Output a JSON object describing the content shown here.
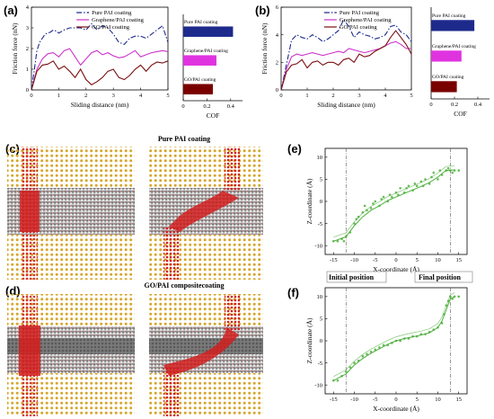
{
  "figure": {
    "sim_titles": [
      "Pure PAI coating",
      "GO/PAI compositecoating"
    ],
    "panel_labels": [
      "(a)",
      "(b)",
      "(c)",
      "(d)",
      "(e)",
      "(f)"
    ],
    "positions": [
      "Initial position",
      "Final position"
    ]
  },
  "chart_data": [
    {
      "id": "a",
      "type": "line",
      "title": "",
      "xlabel": "Sliding distance (nm)",
      "ylabel": "Friction force (nN)",
      "xlim": [
        0,
        5
      ],
      "ylim": [
        0,
        4
      ],
      "xticks": [
        "0",
        "1",
        "2",
        "3",
        "4",
        "5"
      ],
      "yticks": [
        "0",
        "1",
        "2",
        "3",
        "4"
      ],
      "legend_position": "top-center",
      "series": [
        {
          "name": "Pure PAI coating",
          "color": "#1d2a8c",
          "dash": "6,2,1.5,2",
          "x": [
            0,
            0.1,
            0.2,
            0.3,
            0.4,
            0.5,
            0.6,
            0.7,
            0.8,
            0.9,
            1.0,
            1.2,
            1.4,
            1.6,
            1.8,
            2.0,
            2.2,
            2.4,
            2.6,
            2.8,
            3.0,
            3.2,
            3.4,
            3.6,
            3.8,
            4.0,
            4.2,
            4.4,
            4.6,
            4.8,
            5.0
          ],
          "y": [
            0,
            0.9,
            1.9,
            2.3,
            2.5,
            2.7,
            2.75,
            2.8,
            2.9,
            2.85,
            2.75,
            2.9,
            3.0,
            3.0,
            3.0,
            2.9,
            3.2,
            2.9,
            3.1,
            3.0,
            2.7,
            2.3,
            2.2,
            2.5,
            2.6,
            2.6,
            2.5,
            2.7,
            2.9,
            3.1,
            2.3
          ]
        },
        {
          "name": "Graphene/PAI coating",
          "color": "#cc33cc",
          "dash": "",
          "x": [
            0,
            0.2,
            0.4,
            0.6,
            0.8,
            1.0,
            1.2,
            1.4,
            1.6,
            1.8,
            2.0,
            2.2,
            2.4,
            2.6,
            2.8,
            3.0,
            3.2,
            3.4,
            3.6,
            3.8,
            4.0,
            4.2,
            4.4,
            4.6,
            4.8,
            5.0
          ],
          "y": [
            0,
            1.0,
            1.5,
            1.75,
            1.8,
            1.6,
            1.9,
            2.0,
            1.6,
            1.2,
            1.5,
            1.8,
            1.9,
            1.7,
            1.8,
            1.65,
            1.55,
            1.6,
            1.75,
            1.9,
            1.6,
            1.7,
            1.8,
            1.85,
            1.9,
            1.85
          ]
        },
        {
          "name": "GO/PAI coating",
          "color": "#7a0e0e",
          "dash": "",
          "x": [
            0,
            0.2,
            0.4,
            0.6,
            0.8,
            1.0,
            1.2,
            1.4,
            1.6,
            1.8,
            2.0,
            2.2,
            2.4,
            2.6,
            2.8,
            3.0,
            3.2,
            3.4,
            3.6,
            3.8,
            4.0,
            4.2,
            4.4,
            4.6,
            4.8,
            5.0
          ],
          "y": [
            0,
            0.9,
            1.2,
            1.25,
            1.4,
            1.0,
            1.15,
            0.9,
            0.6,
            1.0,
            0.5,
            0.25,
            0.4,
            0.6,
            0.9,
            1.0,
            0.6,
            0.5,
            0.7,
            1.0,
            1.2,
            0.9,
            1.2,
            1.35,
            1.3,
            1.4
          ]
        }
      ]
    },
    {
      "id": "a-cof",
      "type": "bar",
      "orientation": "horizontal",
      "xlabel": "COF",
      "xlim": [
        0,
        0.5
      ],
      "xticks": [
        "0",
        "0.2",
        "0.4"
      ],
      "categories": [
        "Pure PAI coating",
        "Graphene/PAI coating",
        "GO/PAI coating"
      ],
      "values": [
        0.42,
        0.28,
        0.25
      ],
      "colors": [
        "#1d2a8c",
        "#e033e0",
        "#7a0000"
      ]
    },
    {
      "id": "b",
      "type": "line",
      "title": "",
      "xlabel": "Sliding distance (nm)",
      "ylabel": "Friction force (nN)",
      "xlim": [
        0,
        5
      ],
      "ylim": [
        0,
        6
      ],
      "xticks": [
        "0",
        "1",
        "2",
        "3",
        "4",
        "5"
      ],
      "yticks": [
        "0",
        "2",
        "4",
        "6"
      ],
      "legend_position": "top-center",
      "series": [
        {
          "name": "Pure PAI coating",
          "color": "#1d2a8c",
          "dash": "6,2,1.5,2",
          "x": [
            0,
            0.2,
            0.4,
            0.6,
            0.8,
            1.0,
            1.2,
            1.4,
            1.6,
            1.8,
            2.0,
            2.2,
            2.4,
            2.6,
            2.8,
            3.0,
            3.2,
            3.4,
            3.6,
            3.8,
            4.0,
            4.2,
            4.4,
            4.6,
            4.8,
            5.0
          ],
          "y": [
            0,
            1.8,
            3.6,
            4.0,
            3.8,
            3.7,
            4.0,
            3.8,
            3.5,
            3.7,
            4.0,
            4.3,
            5.1,
            4.6,
            3.8,
            4.2,
            4.0,
            3.9,
            3.7,
            3.8,
            4.0,
            4.6,
            4.7,
            4.2,
            4.0,
            3.5
          ]
        },
        {
          "name": "Graphene/PAI coating",
          "color": "#cc33cc",
          "dash": "",
          "x": [
            0,
            0.2,
            0.4,
            0.6,
            0.8,
            1.0,
            1.2,
            1.4,
            1.6,
            1.8,
            2.0,
            2.2,
            2.4,
            2.6,
            2.8,
            3.0,
            3.2,
            3.4,
            3.6,
            3.8,
            4.0,
            4.2,
            4.4,
            4.6,
            4.8,
            5.0
          ],
          "y": [
            0,
            1.5,
            2.4,
            2.6,
            2.5,
            2.6,
            2.7,
            2.6,
            2.5,
            2.6,
            2.7,
            2.8,
            2.7,
            3.0,
            2.9,
            2.8,
            2.7,
            2.8,
            2.9,
            3.0,
            3.2,
            3.4,
            3.5,
            3.3,
            3.0,
            3.0
          ]
        },
        {
          "name": "GO/PAI coating",
          "color": "#7a0e0e",
          "dash": "",
          "x": [
            0,
            0.2,
            0.4,
            0.6,
            0.8,
            1.0,
            1.2,
            1.4,
            1.6,
            1.8,
            2.0,
            2.2,
            2.4,
            2.6,
            2.8,
            3.0,
            3.2,
            3.4,
            3.6,
            3.8,
            4.0,
            4.2,
            4.4,
            4.6,
            4.8,
            5.0
          ],
          "y": [
            0,
            1.3,
            1.8,
            1.9,
            2.2,
            1.6,
            2.0,
            2.1,
            1.8,
            2.0,
            2.0,
            1.8,
            2.2,
            2.3,
            2.0,
            2.6,
            2.4,
            2.5,
            2.8,
            3.0,
            3.2,
            3.8,
            4.3,
            3.8,
            3.3,
            2.6
          ]
        }
      ]
    },
    {
      "id": "b-cof",
      "type": "bar",
      "orientation": "horizontal",
      "xlabel": "COF",
      "xlim": [
        0,
        0.5
      ],
      "xticks": [
        "0",
        "0.2",
        "0.4"
      ],
      "categories": [
        "Pure PAI coating",
        "Graphene/PAI coating",
        "GO/PAI coating"
      ],
      "values": [
        0.37,
        0.26,
        0.22
      ],
      "colors": [
        "#1d2a8c",
        "#e033e0",
        "#7a0000"
      ]
    },
    {
      "id": "e",
      "type": "scatter",
      "xlabel": "X-coordinate (Å)",
      "ylabel": "Z-coordinate (Å)",
      "xlim": [
        -17,
        17
      ],
      "ylim": [
        -12,
        12
      ],
      "xticks": [
        "-15",
        "-10",
        "-5",
        "0",
        "5",
        "10",
        "15"
      ],
      "yticks": [
        "-10",
        "-5",
        "0",
        "5",
        "10"
      ],
      "markers": {
        "color": "#4caf3a",
        "x": [
          -15,
          -14,
          -13,
          -12.5,
          -12,
          -11,
          -10,
          -9.5,
          -9,
          -8,
          -7.5,
          -7,
          -6,
          -5.5,
          -5,
          -4,
          -3.5,
          -3,
          -2,
          -1.5,
          -1,
          0,
          0.5,
          1,
          2,
          2.5,
          3,
          4,
          4.5,
          5,
          6,
          6.5,
          7,
          8,
          8.5,
          9,
          10,
          10.5,
          11,
          12,
          12.5,
          13,
          13.5,
          14,
          15
        ],
        "y": [
          -9,
          -9,
          -8.5,
          -9,
          -8,
          -7,
          -5,
          -4,
          -3.5,
          -2.5,
          -1,
          -2,
          -1.5,
          -0.5,
          0,
          -1,
          0.5,
          1,
          0,
          1.5,
          1,
          2,
          1.5,
          3,
          2,
          3,
          3.5,
          2.5,
          4,
          3.5,
          4.5,
          3.5,
          5,
          4,
          5.5,
          6.5,
          5,
          7,
          6,
          7,
          7.5,
          7,
          6.5,
          7,
          7
        ]
      },
      "fit": {
        "color": "#4caf3a",
        "x": [
          -15,
          -12,
          -10,
          -8,
          -6,
          -4,
          -2,
          0,
          2,
          4,
          6,
          8,
          10,
          11,
          12,
          13,
          14
        ],
        "y": [
          -9,
          -8,
          -5.5,
          -3.5,
          -2,
          -1,
          0.2,
          1,
          1.8,
          2.6,
          3.4,
          4.3,
          5.5,
          6.3,
          7,
          7.1,
          7.1
        ]
      }
    },
    {
      "id": "f",
      "type": "scatter",
      "xlabel": "X-coordinate (Å)",
      "ylabel": "Z-coordinate (Å)",
      "xlim": [
        -17,
        17
      ],
      "ylim": [
        -12,
        12
      ],
      "xticks": [
        "-15",
        "-10",
        "-5",
        "0",
        "5",
        "10",
        "15"
      ],
      "yticks": [
        "-10",
        "-5",
        "0",
        "5",
        "10"
      ],
      "markers": {
        "color": "#4caf3a",
        "x": [
          -15,
          -14,
          -13,
          -12,
          -11,
          -10,
          -9,
          -8,
          -7,
          -6,
          -5,
          -4,
          -3,
          -2,
          -1,
          0,
          1,
          2,
          3,
          4,
          5,
          6,
          7,
          8,
          9,
          10,
          11,
          11.5,
          12,
          12.5,
          13,
          13.5,
          14,
          15
        ],
        "y": [
          -9,
          -9,
          -8,
          -7,
          -6,
          -5,
          -4.5,
          -3.5,
          -3,
          -2.5,
          -2,
          -1.5,
          -1,
          -1,
          -0.5,
          0,
          0,
          0.5,
          0.5,
          1,
          1,
          1.5,
          1.5,
          2,
          2.5,
          3,
          4,
          6,
          8,
          9,
          10,
          9.5,
          10,
          10
        ]
      },
      "fit": {
        "color": "#4caf3a",
        "x": [
          -15,
          -12,
          -10,
          -8,
          -6,
          -4,
          -2,
          0,
          2,
          4,
          6,
          8,
          10,
          11,
          12,
          13,
          14
        ],
        "y": [
          -9,
          -7.5,
          -5.5,
          -4,
          -2.8,
          -1.8,
          -0.8,
          0,
          0.5,
          0.9,
          1.3,
          1.8,
          3,
          4.5,
          7,
          9.5,
          10
        ]
      }
    }
  ]
}
